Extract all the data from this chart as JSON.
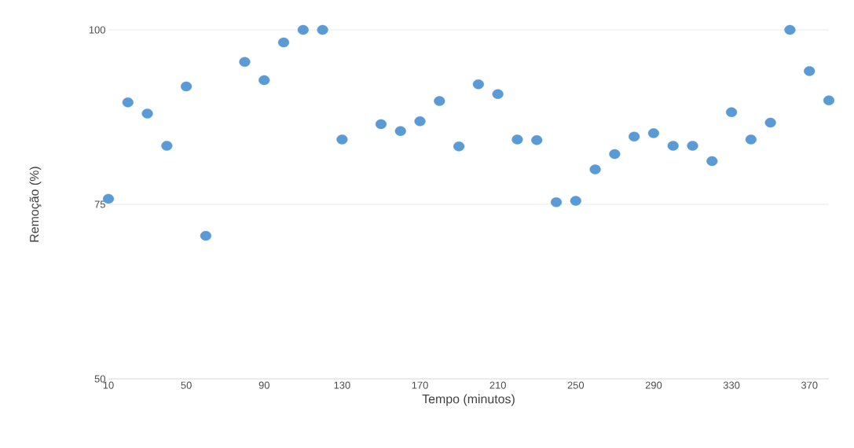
{
  "chart_data": {
    "type": "scatter",
    "xlabel": "Tempo (minutos)",
    "ylabel": "Remoção (%)",
    "x": [
      10,
      20,
      30,
      40,
      50,
      60,
      80,
      90,
      100,
      110,
      120,
      130,
      150,
      160,
      170,
      180,
      190,
      200,
      210,
      220,
      230,
      240,
      250,
      260,
      270,
      280,
      290,
      300,
      310,
      320,
      330,
      340,
      350,
      360,
      370,
      380
    ],
    "values": [
      75.8,
      89.6,
      88.0,
      83.4,
      91.9,
      70.5,
      95.4,
      92.8,
      98.2,
      100,
      100,
      84.3,
      86.5,
      85.5,
      86.9,
      89.8,
      83.3,
      92.2,
      90.8,
      84.3,
      84.2,
      75.3,
      75.5,
      80.0,
      82.2,
      84.7,
      85.2,
      83.4,
      83.4,
      81.2,
      88.2,
      84.3,
      86.7,
      100,
      94.1,
      89.9
    ],
    "color": "#5b9bd5",
    "marker": "circle",
    "xlim": [
      10,
      380
    ],
    "ylim": [
      50,
      100
    ],
    "xticks": [
      10,
      50,
      90,
      130,
      170,
      210,
      250,
      290,
      330,
      370
    ],
    "yticks": [
      50,
      75,
      100
    ],
    "grid": "y"
  }
}
